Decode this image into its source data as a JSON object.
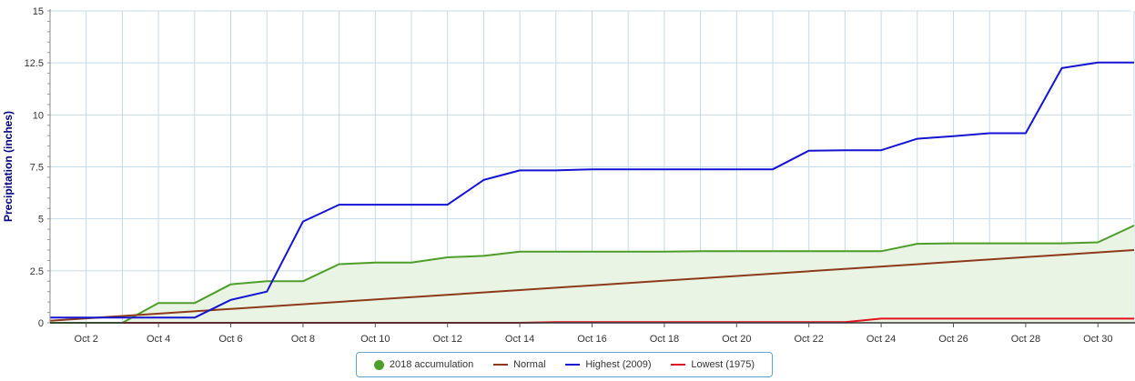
{
  "chart_data": {
    "type": "line",
    "title": "",
    "xlabel": "",
    "ylabel": "Precipitation (inches)",
    "ylim": [
      0,
      15
    ],
    "xlim": [
      1,
      31
    ],
    "y_ticks": [
      0,
      2.5,
      5,
      7.5,
      10,
      12.5,
      15
    ],
    "y_tick_labels": [
      "0",
      "2.5",
      "5",
      "7.5",
      "10",
      "12.5",
      "15"
    ],
    "x_ticks": [
      2,
      4,
      6,
      8,
      10,
      12,
      14,
      16,
      18,
      20,
      22,
      24,
      26,
      28,
      30
    ],
    "x_tick_labels": [
      "Oct 2",
      "Oct 4",
      "Oct 6",
      "Oct 8",
      "Oct 10",
      "Oct 12",
      "Oct 14",
      "Oct 16",
      "Oct 18",
      "Oct 20",
      "Oct 22",
      "Oct 24",
      "Oct 26",
      "Oct 28",
      "Oct 30"
    ],
    "grid": true,
    "legend_position": "bottom",
    "series": [
      {
        "name": "2018 accumulation",
        "color": "#4d9e29",
        "fill": "#eaf4e4",
        "marker": "dot",
        "x": [
          3,
          4,
          5,
          6,
          7,
          8,
          9,
          10,
          11,
          12,
          13,
          14,
          15,
          16,
          17,
          18,
          19,
          20,
          21,
          22,
          23,
          24,
          25,
          26,
          27,
          28,
          29,
          30,
          31
        ],
        "values": [
          0,
          0.95,
          0.95,
          1.85,
          2.0,
          2.0,
          2.82,
          2.9,
          2.9,
          3.15,
          3.22,
          3.42,
          3.42,
          3.42,
          3.42,
          3.42,
          3.44,
          3.44,
          3.44,
          3.44,
          3.44,
          3.44,
          3.8,
          3.82,
          3.82,
          3.82,
          3.82,
          3.87,
          4.68
        ]
      },
      {
        "name": "Normal",
        "color": "#8b3a1a",
        "x": [
          1,
          31
        ],
        "values": [
          0.1,
          3.5
        ]
      },
      {
        "name": "Highest (2009)",
        "color": "#1414d2",
        "x": [
          1,
          2,
          3,
          4,
          5,
          6,
          7,
          8,
          9,
          10,
          11,
          12,
          13,
          14,
          15,
          16,
          17,
          18,
          19,
          20,
          21,
          22,
          23,
          24,
          25,
          26,
          27,
          28,
          29,
          30,
          31
        ],
        "values": [
          0.25,
          0.25,
          0.25,
          0.25,
          0.25,
          1.1,
          1.5,
          4.87,
          5.68,
          5.68,
          5.68,
          5.68,
          6.87,
          7.33,
          7.33,
          7.38,
          7.38,
          7.38,
          7.38,
          7.38,
          7.38,
          8.28,
          8.3,
          8.3,
          8.85,
          8.98,
          9.12,
          9.12,
          12.25,
          12.52,
          12.52
        ]
      },
      {
        "name": "Lowest (1975)",
        "color": "#e0141e",
        "x": [
          1,
          14,
          15,
          23,
          24,
          31
        ],
        "values": [
          0,
          0,
          0.03,
          0.03,
          0.2,
          0.2
        ]
      }
    ]
  }
}
